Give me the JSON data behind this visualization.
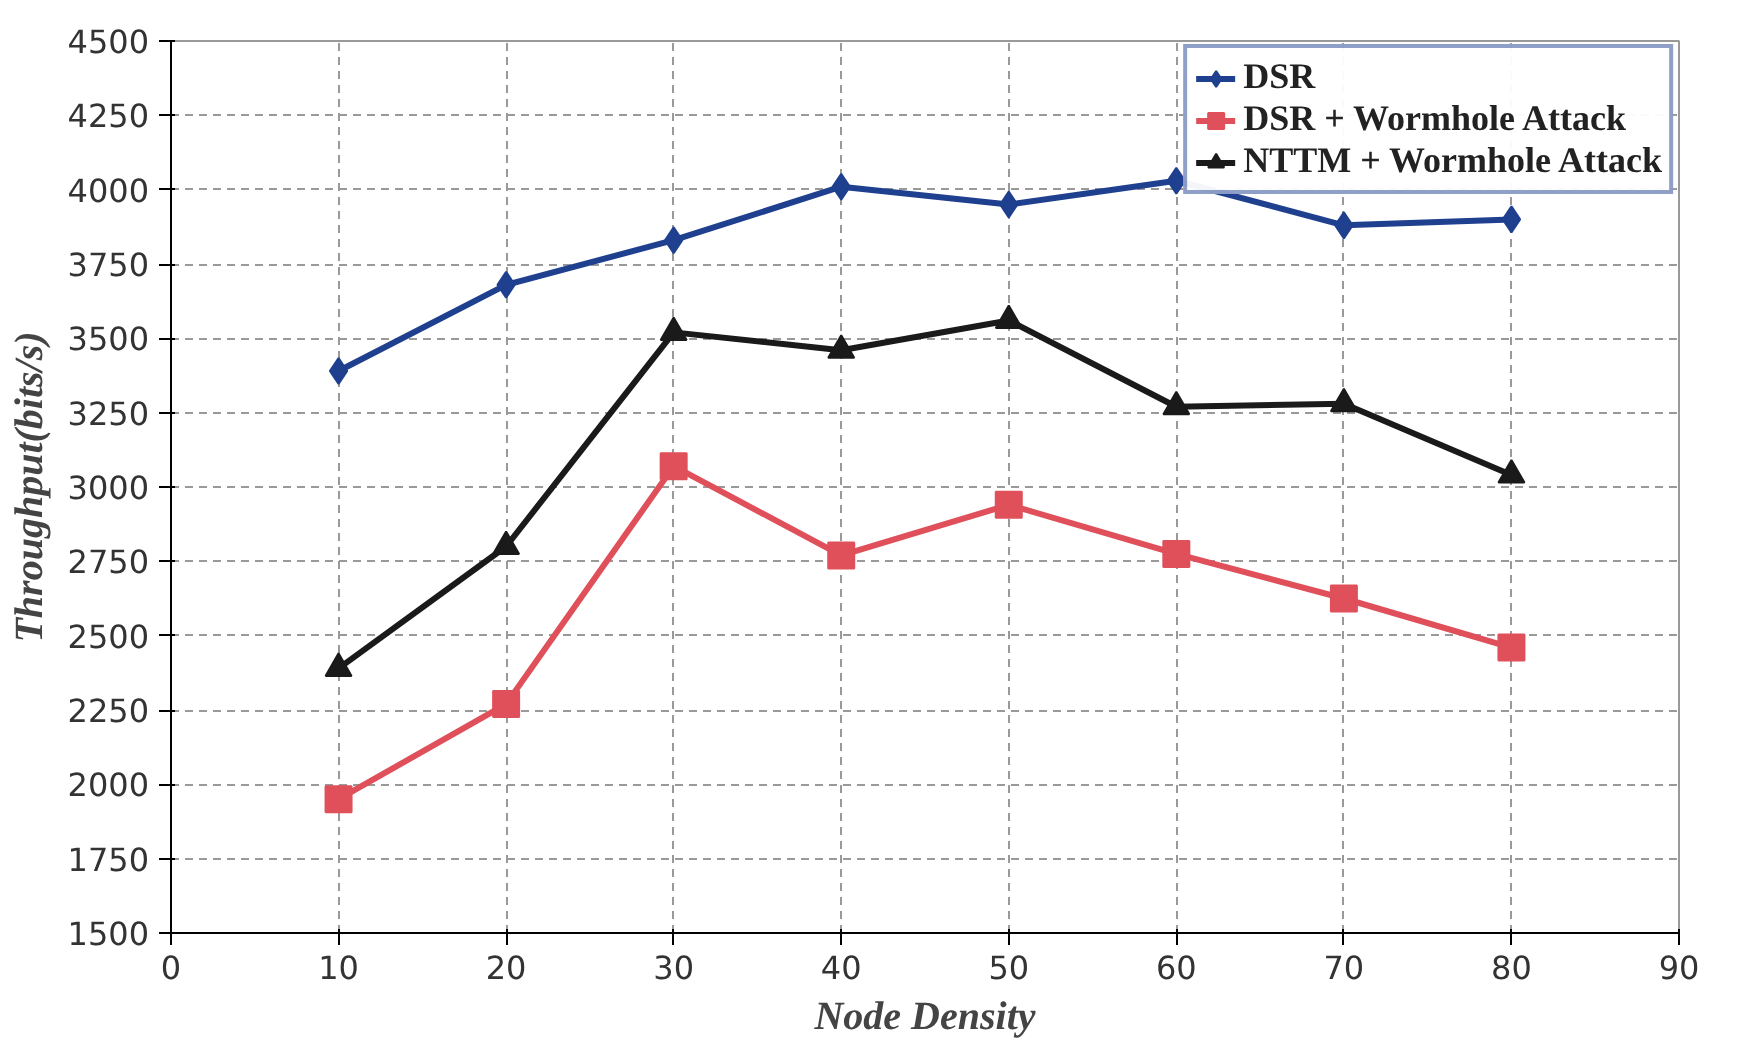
{
  "chart_data": {
    "type": "line",
    "xlabel": "Node Density",
    "ylabel": "Throughput(bits/s)",
    "x": [
      10,
      20,
      30,
      40,
      50,
      60,
      70,
      80
    ],
    "series": [
      {
        "name": "DSR",
        "color": "#1f3f8f",
        "marker": "diamond",
        "values": [
          3390,
          3680,
          3830,
          4010,
          3950,
          4030,
          3880,
          3900
        ]
      },
      {
        "name": "DSR + Wormhole Attack",
        "color": "#e0505a",
        "marker": "square",
        "values": [
          1950,
          2270,
          3070,
          2770,
          2940,
          2775,
          2625,
          2460
        ]
      },
      {
        "name": "NTTM + Wormhole Attack",
        "color": "#1a1a1a",
        "marker": "triangle",
        "values": [
          2390,
          2800,
          3520,
          3460,
          3560,
          3270,
          3280,
          3040
        ]
      }
    ],
    "xlim": [
      0,
      90
    ],
    "xticks": [
      0,
      10,
      20,
      30,
      40,
      50,
      60,
      70,
      80,
      90
    ],
    "ylim": [
      1500,
      4500
    ],
    "yticks": [
      1500,
      1750,
      2000,
      2250,
      2500,
      2750,
      3000,
      3250,
      3500,
      3750,
      4000,
      4250,
      4500
    ],
    "grid": true,
    "legend": "top right",
    "line_style": "solid"
  }
}
